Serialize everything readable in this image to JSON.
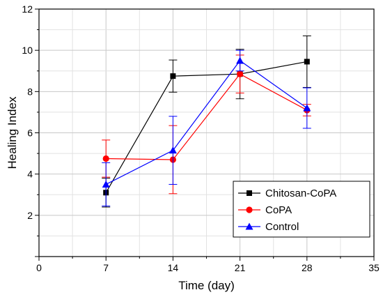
{
  "chart_data": {
    "type": "line",
    "title": "",
    "xlabel": "Time (day)",
    "ylabel": "Healing Index",
    "xlim": [
      0,
      35
    ],
    "ylim": [
      0,
      12
    ],
    "xticks": [
      0,
      7,
      14,
      21,
      28,
      35
    ],
    "yticks": [
      2,
      4,
      6,
      8,
      10,
      12
    ],
    "grid": true,
    "legend_position": "bottom-right",
    "series": [
      {
        "name": "Chitosan-CoPA",
        "color": "#000000",
        "marker": "square",
        "x": [
          7,
          14,
          21,
          28
        ],
        "y": [
          3.1,
          8.75,
          8.85,
          9.45
        ],
        "err": [
          0.7,
          0.78,
          1.2,
          1.25
        ]
      },
      {
        "name": "CoPA",
        "color": "#ff0000",
        "marker": "circle",
        "x": [
          7,
          14,
          21,
          28
        ],
        "y": [
          4.75,
          4.7,
          8.85,
          7.1
        ],
        "err": [
          0.9,
          1.65,
          0.92,
          0.28
        ]
      },
      {
        "name": "Control",
        "color": "#0000ff",
        "marker": "triangle",
        "x": [
          7,
          14,
          21,
          28
        ],
        "y": [
          3.5,
          5.15,
          9.5,
          7.2
        ],
        "err": [
          1.05,
          1.65,
          0.5,
          0.98
        ]
      }
    ]
  }
}
